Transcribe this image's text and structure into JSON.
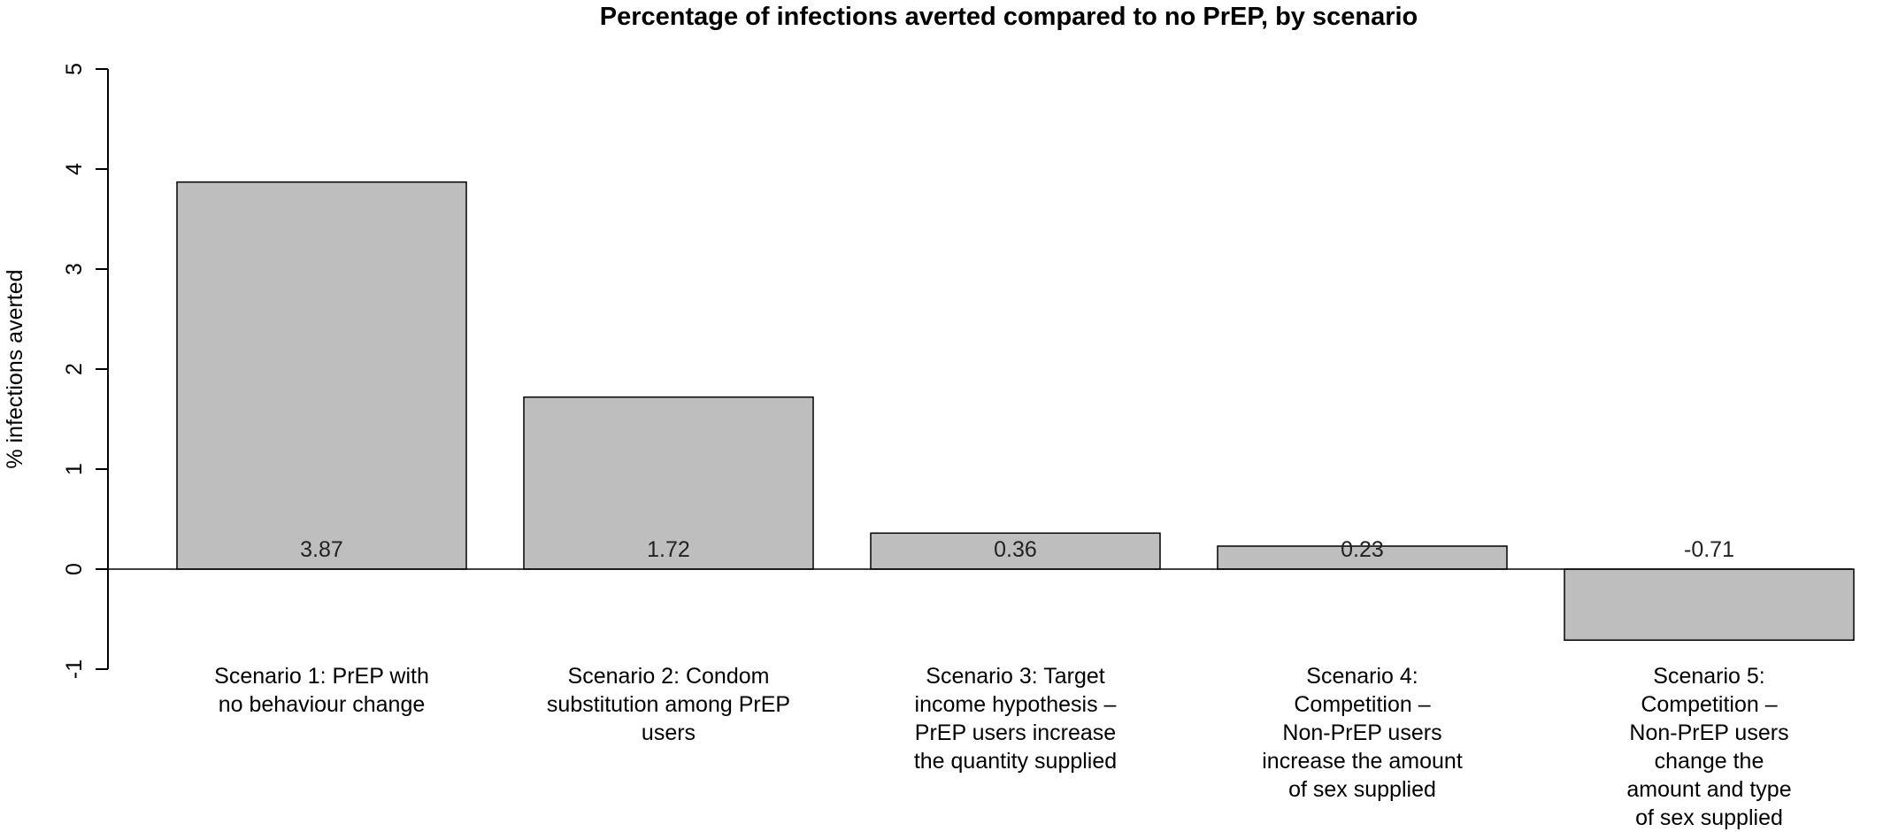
{
  "chart_data": {
    "type": "bar",
    "title": "Percentage of infections averted compared to no PrEP, by scenario",
    "xlabel": "",
    "ylabel": "% infections averted",
    "ylim": [
      -1,
      5
    ],
    "yticks": [
      -1,
      0,
      1,
      2,
      3,
      4,
      5
    ],
    "grid": false,
    "legend": "none",
    "bar_color": "#bebebe",
    "categories": [
      [
        "Scenario 1: PrEP with",
        "no behaviour change"
      ],
      [
        "Scenario 2: Condom",
        "substitution among PrEP",
        "users"
      ],
      [
        "Scenario 3: Target",
        "income hypothesis –",
        "PrEP users increase",
        "the quantity supplied"
      ],
      [
        "Scenario 4:",
        "Competition –",
        "Non-PrEP users",
        "increase the amount",
        "of sex supplied"
      ],
      [
        "Scenario 5:",
        "Competition –",
        "Non-PrEP users",
        "change the",
        "amount and type",
        "of sex supplied"
      ]
    ],
    "values": [
      3.87,
      1.72,
      0.36,
      0.23,
      -0.71
    ],
    "value_labels": [
      "3.87",
      "1.72",
      "0.36",
      "0.23",
      "-0.71"
    ]
  }
}
